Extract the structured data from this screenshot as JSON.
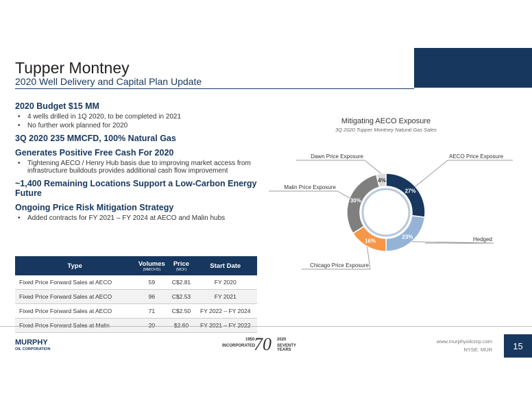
{
  "header": {
    "title": "Tupper Montney",
    "subtitle": "2020 Well Delivery and Capital Plan Update"
  },
  "content": [
    {
      "heading": "2020 Budget $15 MM",
      "bullets": [
        "4 wells drilled in 1Q 2020, to be completed in 2021",
        "No further work planned for 2020"
      ]
    },
    {
      "heading": "3Q 2020 235 MMCFD, 100% Natural Gas",
      "bullets": []
    },
    {
      "heading": "Generates Positive Free Cash For 2020",
      "bullets": [
        "Tightening AECO / Henry Hub basis due to improving market access from infrastructure buildouts provides additional cash flow improvement"
      ]
    },
    {
      "heading": "~1,400 Remaining Locations Support a Low-Carbon Energy Future",
      "bullets": []
    },
    {
      "heading": "Ongoing Price Risk Mitigation Strategy",
      "bullets": [
        "Added contracts for FY 2021 – FY 2024 at AECO and Malin hubs"
      ]
    }
  ],
  "table": {
    "header": [
      "Type",
      "Volumes",
      "Price",
      "Start Date"
    ],
    "units": [
      "",
      "(MMCF/D)",
      "(MCF)",
      ""
    ],
    "rows": [
      [
        "Fixed Price Forward Sales at AECO",
        "59",
        "C$2.81",
        "FY 2020"
      ],
      [
        "Fixed Price Forward Sales at AECO",
        "96",
        "C$2.53",
        "FY 2021"
      ],
      [
        "Fixed Price Forward Sales at AECO",
        "71",
        "C$2.50",
        "FY 2022 – FY 2024"
      ],
      [
        "Fixed Price Forward Sales at Malin",
        "20",
        "$2.60",
        "FY 2021 – FY 2022"
      ]
    ]
  },
  "chart_data": {
    "type": "pie",
    "donut": true,
    "title": "Mitigating AECO Exposure",
    "subtitle": "3Q 2020 Tupper Montney Natural Gas Sales",
    "categories": [
      "AECO Price Exposure",
      "Hedged",
      "Chicago Price Exposure",
      "Malin Price Exposure",
      "Dawn Price Exposure"
    ],
    "values": [
      27,
      23,
      16,
      30,
      4
    ],
    "value_labels": [
      "27%",
      "23%",
      "16%",
      "30%",
      "4%"
    ],
    "colors": [
      "#17375e",
      "#95b3d7",
      "#f79646",
      "#7f7f7f",
      "#d9d9d9"
    ]
  },
  "footer": {
    "logo": "MURPHY",
    "logo_sub": "OIL CORPORATION",
    "anniv": [
      "1950",
      "INCORPORATED",
      "70",
      "2020",
      "SEVENTY YEARS"
    ],
    "website": "www.murphyoilcorp.com",
    "ticker": "NYSE: MUR",
    "page": "15"
  }
}
